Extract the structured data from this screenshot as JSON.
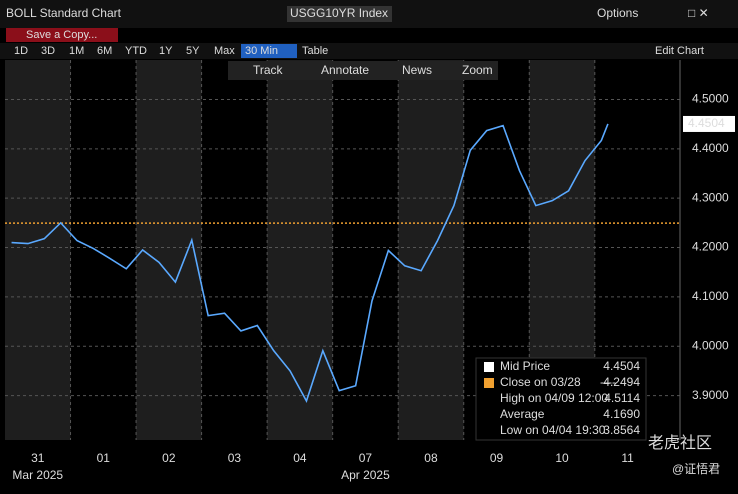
{
  "ui": {
    "title": "BOLL Standard Chart",
    "ticker": "USGG10YR Index",
    "options": "Options",
    "save": "Save a Copy...",
    "ranges": [
      "1D",
      "3D",
      "1M",
      "6M",
      "YTD",
      "1Y",
      "5Y",
      "Max",
      "30 Min"
    ],
    "table": "Table",
    "edit": "Edit Chart",
    "tools": [
      "Track",
      "Annotate",
      "News",
      "Zoom"
    ],
    "watermark": "老虎社区",
    "author": "@证悟君"
  },
  "chart_data": {
    "type": "line",
    "color": "#5aa9ff",
    "x": [
      0.1,
      0.35,
      0.6,
      0.85,
      1.1,
      1.35,
      1.6,
      1.85,
      2.1,
      2.35,
      2.6,
      2.85,
      3.1,
      3.35,
      3.6,
      3.85,
      4.1,
      4.35,
      4.6,
      4.85,
      5.1,
      5.35,
      5.6,
      5.85,
      6.1,
      6.35,
      6.6,
      6.85,
      7.1,
      7.35,
      7.6,
      7.85,
      8.1,
      8.35,
      8.6,
      8.85,
      9.1,
      9.2
    ],
    "values": [
      4.21,
      4.208,
      4.218,
      4.25,
      4.214,
      4.198,
      4.178,
      4.157,
      4.195,
      4.17,
      4.13,
      4.215,
      4.062,
      4.067,
      4.031,
      4.042,
      3.991,
      3.95,
      3.889,
      3.991,
      3.91,
      3.92,
      4.092,
      4.194,
      4.163,
      4.153,
      4.214,
      4.285,
      4.397,
      4.437,
      4.447,
      4.356,
      4.285,
      4.295,
      4.315,
      4.376,
      4.417,
      4.4504
    ],
    "xlim": [
      0,
      10.3
    ],
    "ylim": [
      3.81,
      4.58
    ],
    "xticks": [
      {
        "value": 0.5,
        "label": "31"
      },
      {
        "value": 1.5,
        "label": "01"
      },
      {
        "value": 2.5,
        "label": "02"
      },
      {
        "value": 3.5,
        "label": "03"
      },
      {
        "value": 4.5,
        "label": "04"
      },
      {
        "value": 5.5,
        "label": "07"
      },
      {
        "value": 6.5,
        "label": "08"
      },
      {
        "value": 7.5,
        "label": "09"
      },
      {
        "value": 8.5,
        "label": "10"
      },
      {
        "value": 9.5,
        "label": "11"
      }
    ],
    "months": [
      {
        "value": 0.5,
        "label": "Mar 2025"
      },
      {
        "value": 5.5,
        "label": "Apr 2025"
      }
    ],
    "yticks": [
      {
        "value": 3.9,
        "label": "3.9000"
      },
      {
        "value": 4,
        "label": "4.0000"
      },
      {
        "value": 4.1,
        "label": "4.1000"
      },
      {
        "value": 4.2,
        "label": "4.2000"
      },
      {
        "value": 4.3,
        "label": "4.3000"
      },
      {
        "value": 4.4,
        "label": "4.4000"
      },
      {
        "value": 4.5,
        "label": "4.5000"
      }
    ],
    "grid": true,
    "close_line": 4.2494,
    "close_color": "#f0a030",
    "legend": {
      "mid": "Mid Price",
      "close": "Close on 03/28",
      "close_dash": "----",
      "high": "High on 04/09 12:00",
      "high_value": 4.5114,
      "average": "Average",
      "average_value": {
        "value": 4.169,
        "label": "4.1690"
      },
      "low": "Low on 04/04 19:30",
      "low_value": 3.8564
    }
  }
}
